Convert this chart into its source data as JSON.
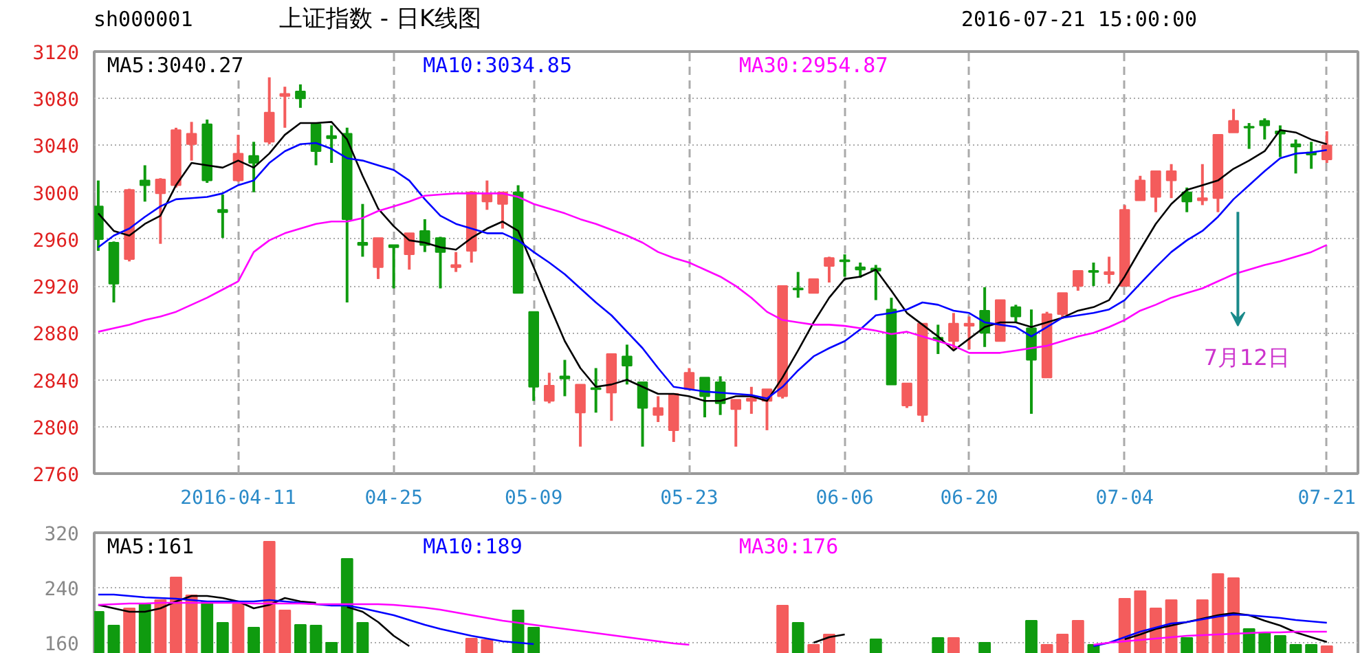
{
  "chart_data": [
    {
      "type": "candlestick",
      "title": "上证指数 - 日K线图",
      "annotations": [
        "sh000001",
        "2016-07-21 15:00:00",
        "7月12日"
      ],
      "categories": [
        null,
        null,
        null,
        null,
        null,
        null,
        null,
        null,
        null,
        "2016-04-11",
        null,
        null,
        null,
        null,
        null,
        null,
        null,
        null,
        null,
        "04-25",
        null,
        null,
        null,
        null,
        null,
        null,
        null,
        null,
        "05-09",
        null,
        null,
        null,
        null,
        null,
        null,
        null,
        null,
        null,
        "05-23",
        null,
        null,
        null,
        null,
        null,
        null,
        null,
        null,
        null,
        "06-06",
        null,
        null,
        null,
        null,
        null,
        null,
        null,
        "06-20",
        null,
        null,
        null,
        null,
        null,
        null,
        null,
        null,
        null,
        "07-04",
        null,
        null,
        null,
        null,
        null,
        null,
        null,
        null,
        null,
        null,
        null,
        null,
        "07-21"
      ],
      "ohlc": [
        [
          2988,
          3010,
          2950,
          2960
        ],
        [
          2957,
          2958,
          2906,
          2922
        ],
        [
          2943,
          3003,
          2941,
          3002
        ],
        [
          3010,
          3023,
          2992,
          3006
        ],
        [
          2999,
          3012,
          2956,
          3011
        ],
        [
          3006,
          3055,
          3004,
          3053
        ],
        [
          3041,
          3060,
          3027,
          3050
        ],
        [
          3058,
          3062,
          3008,
          3010
        ],
        [
          2985,
          2998,
          2961,
          2983
        ],
        [
          3010,
          3049,
          3009,
          3033
        ],
        [
          3031,
          3043,
          3000,
          3025
        ],
        [
          3043,
          3098,
          3041,
          3068
        ],
        [
          3082,
          3090,
          3055,
          3084
        ],
        [
          3086,
          3092,
          3072,
          3080
        ],
        [
          3058,
          3058,
          3023,
          3035
        ],
        [
          3048,
          3057,
          3025,
          3046
        ],
        [
          3050,
          3055,
          2906,
          2977
        ],
        [
          2957,
          2990,
          2945,
          2955
        ],
        [
          2936,
          2961,
          2926,
          2961
        ],
        [
          2955,
          2955,
          2918,
          2953
        ],
        [
          2947,
          2965,
          2934,
          2965
        ],
        [
          2967,
          2977,
          2949,
          2955
        ],
        [
          2961,
          2962,
          2918,
          2949
        ],
        [
          2936,
          2949,
          2932,
          2938
        ],
        [
          2950,
          3001,
          2940,
          3000
        ],
        [
          2992,
          3010,
          2985,
          2999
        ],
        [
          2990,
          3000,
          2969,
          3000
        ],
        [
          3000,
          3006,
          2914,
          2914
        ],
        [
          2898,
          2898,
          2822,
          2834
        ],
        [
          2822,
          2846,
          2820,
          2835
        ],
        [
          2843,
          2857,
          2826,
          2841
        ],
        [
          2812,
          2836,
          2783,
          2836
        ],
        [
          2833,
          2850,
          2812,
          2832
        ],
        [
          2829,
          2862,
          2805,
          2862
        ],
        [
          2860,
          2870,
          2836,
          2852
        ],
        [
          2838,
          2838,
          2783,
          2816
        ],
        [
          2810,
          2826,
          2804,
          2816
        ],
        [
          2797,
          2828,
          2787,
          2828
        ],
        [
          2832,
          2850,
          2832,
          2846
        ],
        [
          2842,
          2842,
          2808,
          2826
        ],
        [
          2838,
          2843,
          2810,
          2820
        ],
        [
          2815,
          2823,
          2783,
          2823
        ],
        [
          2822,
          2834,
          2811,
          2824
        ],
        [
          2822,
          2832,
          2797,
          2832
        ],
        [
          2826,
          2920,
          2824,
          2920
        ],
        [
          2918,
          2932,
          2910,
          2917
        ],
        [
          2914,
          2926,
          2914,
          2926
        ],
        [
          2937,
          2945,
          2923,
          2944
        ],
        [
          2942,
          2947,
          2928,
          2941
        ],
        [
          2936,
          2940,
          2927,
          2934
        ],
        [
          2935,
          2938,
          2908,
          2933
        ],
        [
          2900,
          2910,
          2836,
          2836
        ],
        [
          2818,
          2837,
          2816,
          2837
        ],
        [
          2810,
          2888,
          2804,
          2888
        ],
        [
          2876,
          2887,
          2862,
          2874
        ],
        [
          2873,
          2897,
          2865,
          2888
        ],
        [
          2886,
          2894,
          2866,
          2888
        ],
        [
          2899,
          2919,
          2868,
          2880
        ],
        [
          2873,
          2908,
          2873,
          2908
        ],
        [
          2902,
          2904,
          2889,
          2894
        ],
        [
          2884,
          2900,
          2811,
          2857
        ],
        [
          2842,
          2898,
          2842,
          2896
        ],
        [
          2896,
          2914,
          2892,
          2914
        ],
        [
          2920,
          2933,
          2916,
          2933
        ],
        [
          2933,
          2940,
          2920,
          2932
        ],
        [
          2930,
          2945,
          2922,
          2932
        ],
        [
          2920,
          2989,
          2920,
          2985
        ],
        [
          2993,
          3014,
          2993,
          3010
        ],
        [
          2996,
          3018,
          2983,
          3018
        ],
        [
          3010,
          3024,
          2995,
          3018
        ],
        [
          3000,
          3004,
          2983,
          2992
        ],
        [
          2993,
          3024,
          2989,
          2995
        ],
        [
          2995,
          3049,
          2983,
          3049
        ],
        [
          3051,
          3071,
          3051,
          3061
        ],
        [
          3056,
          3059,
          3037,
          3055
        ],
        [
          3061,
          3063,
          3045,
          3057
        ],
        [
          3052,
          3057,
          3030,
          3050
        ],
        [
          3041,
          3045,
          3016,
          3039
        ],
        [
          3034,
          3043,
          3020,
          3032
        ],
        [
          3028,
          3052,
          3025,
          3040
        ]
      ],
      "colors": [
        "#0f9b0f",
        "#0f9b0f",
        "#f45c5c",
        "#0f9b0f",
        "#f45c5c",
        "#f45c5c",
        "#f45c5c",
        "#0f9b0f",
        "#0f9b0f",
        "#f45c5c",
        "#0f9b0f",
        "#f45c5c",
        "#f45c5c",
        "#0f9b0f",
        "#0f9b0f",
        "#0f9b0f",
        "#0f9b0f",
        "#0f9b0f",
        "#f45c5c",
        "#0f9b0f",
        "#f45c5c",
        "#0f9b0f",
        "#0f9b0f",
        "#f45c5c",
        "#f45c5c",
        "#f45c5c",
        "#f45c5c",
        "#0f9b0f",
        "#0f9b0f",
        "#f45c5c",
        "#0f9b0f",
        "#f45c5c",
        "#0f9b0f",
        "#f45c5c",
        "#0f9b0f",
        "#0f9b0f",
        "#f45c5c",
        "#f45c5c",
        "#f45c5c",
        "#0f9b0f",
        "#0f9b0f",
        "#f45c5c",
        "#f45c5c",
        "#f45c5c",
        "#f45c5c",
        "#0f9b0f",
        "#f45c5c",
        "#f45c5c",
        "#0f9b0f",
        "#0f9b0f",
        "#0f9b0f",
        "#0f9b0f",
        "#f45c5c",
        "#f45c5c",
        "#0f9b0f",
        "#f45c5c",
        "#f45c5c",
        "#0f9b0f",
        "#f45c5c",
        "#0f9b0f",
        "#0f9b0f",
        "#f45c5c",
        "#f45c5c",
        "#f45c5c",
        "#0f9b0f",
        "#f45c5c",
        "#f45c5c",
        "#f45c5c",
        "#f45c5c",
        "#f45c5c",
        "#0f9b0f",
        "#f45c5c",
        "#f45c5c",
        "#f45c5c",
        "#0f9b0f",
        "#0f9b0f",
        "#0f9b0f",
        "#0f9b0f",
        "#0f9b0f",
        "#f45c5c"
      ],
      "series": [
        {
          "name": "MA5:3040.27",
          "type": "line",
          "color": "#000000",
          "values": [
            2982,
            2967,
            2963,
            2973,
            2980,
            3006,
            3025,
            3023,
            3021,
            3027,
            3021,
            3033,
            3049,
            3059,
            3059,
            3060,
            3045,
            3014,
            2986,
            2971,
            2959,
            2957,
            2953,
            2951,
            2961,
            2969,
            2975,
            2967,
            2936,
            2904,
            2873,
            2850,
            2834,
            2836,
            2840,
            2834,
            2828,
            2828,
            2826,
            2822,
            2822,
            2826,
            2826,
            2822,
            2842,
            2865,
            2889,
            2910,
            2926,
            2928,
            2934,
            2916,
            2897,
            2887,
            2877,
            2865,
            2875,
            2885,
            2889,
            2889,
            2885,
            2889,
            2893,
            2899,
            2902,
            2908,
            2928,
            2951,
            2973,
            2990,
            3002,
            3006,
            3010,
            3020,
            3027,
            3035,
            3053,
            3051,
            3045,
            3041
          ]
        },
        {
          "name": "MA10:3034.85",
          "type": "line",
          "color": "#0000ff",
          "values": [
            2953,
            2963,
            2969,
            2979,
            2988,
            2994,
            2995,
            2996,
            2999,
            3006,
            3010,
            3025,
            3035,
            3041,
            3042,
            3037,
            3029,
            3027,
            3023,
            3019,
            3010,
            2994,
            2980,
            2973,
            2969,
            2965,
            2965,
            2959,
            2949,
            2940,
            2930,
            2918,
            2906,
            2895,
            2881,
            2867,
            2850,
            2834,
            2832,
            2830,
            2829,
            2828,
            2827,
            2824,
            2834,
            2848,
            2860,
            2867,
            2873,
            2883,
            2895,
            2897,
            2900,
            2906,
            2904,
            2899,
            2897,
            2889,
            2887,
            2885,
            2877,
            2885,
            2893,
            2895,
            2897,
            2900,
            2908,
            2922,
            2936,
            2949,
            2959,
            2967,
            2979,
            2994,
            3006,
            3018,
            3029,
            3033,
            3034,
            3036
          ]
        },
        {
          "name": "MA30:2954.87",
          "type": "line",
          "color": "#ff00ff",
          "values": [
            2881,
            2884,
            2887,
            2891,
            2894,
            2898,
            2904,
            2910,
            2917,
            2924,
            2949,
            2959,
            2965,
            2969,
            2973,
            2975,
            2975,
            2978,
            2984,
            2988,
            2992,
            2997,
            2998,
            2999,
            2999,
            2999,
            2999,
            2996,
            2990,
            2986,
            2982,
            2977,
            2973,
            2968,
            2963,
            2957,
            2949,
            2944,
            2940,
            2934,
            2928,
            2920,
            2910,
            2898,
            2891,
            2889,
            2887,
            2887,
            2886,
            2884,
            2882,
            2879,
            2881,
            2877,
            2873,
            2869,
            2863,
            2863,
            2863,
            2865,
            2867,
            2869,
            2873,
            2877,
            2880,
            2885,
            2891,
            2899,
            2904,
            2910,
            2914,
            2918,
            2924,
            2930,
            2934,
            2938,
            2941,
            2945,
            2949,
            2955
          ]
        }
      ],
      "ylim": [
        2760,
        3120
      ],
      "yticks": [
        2760,
        2800,
        2840,
        2880,
        2920,
        2960,
        3000,
        3040,
        3080,
        3120
      ],
      "grid": true
    },
    {
      "type": "bar",
      "categories": [
        null,
        null,
        null,
        null,
        null,
        null,
        null,
        null,
        null,
        null,
        null,
        null,
        null,
        null,
        null,
        null,
        null,
        null,
        null,
        null,
        null,
        null,
        null,
        null,
        null,
        null,
        null,
        null,
        null,
        null,
        null,
        null,
        null,
        null,
        null,
        null,
        null,
        null,
        null,
        null,
        null,
        null,
        null,
        null,
        null,
        null,
        null,
        null,
        null,
        null,
        null,
        null,
        null,
        null,
        null,
        null,
        null,
        null,
        null,
        null,
        null,
        null,
        null,
        null,
        null,
        null,
        null,
        null,
        null,
        null,
        null,
        null,
        null,
        null,
        null,
        null,
        null,
        null,
        null,
        null
      ],
      "values": [
        205,
        185,
        210,
        216,
        222,
        255,
        229,
        220,
        189,
        216,
        182,
        307,
        207,
        186,
        185,
        160,
        282,
        189,
        null,
        null,
        null,
        null,
        null,
        null,
        166,
        164,
        null,
        207,
        182,
        null,
        null,
        null,
        null,
        null,
        null,
        null,
        null,
        null,
        null,
        null,
        null,
        null,
        null,
        null,
        214,
        189,
        157,
        172,
        null,
        null,
        165,
        null,
        null,
        null,
        167,
        167,
        null,
        160,
        null,
        null,
        192,
        157,
        172,
        192,
        157,
        null,
        224,
        235,
        210,
        222,
        167,
        222,
        260,
        254,
        180,
        174,
        170,
        157,
        157,
        155
      ],
      "colors": [
        "#0f9b0f",
        "#0f9b0f",
        "#f45c5c",
        "#0f9b0f",
        "#f45c5c",
        "#f45c5c",
        "#f45c5c",
        "#0f9b0f",
        "#0f9b0f",
        "#f45c5c",
        "#0f9b0f",
        "#f45c5c",
        "#f45c5c",
        "#0f9b0f",
        "#0f9b0f",
        "#0f9b0f",
        "#0f9b0f",
        "#0f9b0f",
        "#f45c5c",
        "#0f9b0f",
        "#f45c5c",
        "#0f9b0f",
        "#0f9b0f",
        "#f45c5c",
        "#f45c5c",
        "#f45c5c",
        "#f45c5c",
        "#0f9b0f",
        "#0f9b0f",
        "#f45c5c",
        "#0f9b0f",
        "#f45c5c",
        "#0f9b0f",
        "#f45c5c",
        "#0f9b0f",
        "#0f9b0f",
        "#f45c5c",
        "#f45c5c",
        "#f45c5c",
        "#0f9b0f",
        "#0f9b0f",
        "#f45c5c",
        "#f45c5c",
        "#f45c5c",
        "#f45c5c",
        "#0f9b0f",
        "#f45c5c",
        "#f45c5c",
        "#0f9b0f",
        "#0f9b0f",
        "#0f9b0f",
        "#0f9b0f",
        "#f45c5c",
        "#f45c5c",
        "#0f9b0f",
        "#f45c5c",
        "#f45c5c",
        "#0f9b0f",
        "#f45c5c",
        "#0f9b0f",
        "#0f9b0f",
        "#f45c5c",
        "#f45c5c",
        "#f45c5c",
        "#0f9b0f",
        "#f45c5c",
        "#f45c5c",
        "#f45c5c",
        "#f45c5c",
        "#f45c5c",
        "#0f9b0f",
        "#f45c5c",
        "#f45c5c",
        "#f45c5c",
        "#0f9b0f",
        "#0f9b0f",
        "#0f9b0f",
        "#0f9b0f",
        "#0f9b0f",
        "#f45c5c"
      ],
      "series": [
        {
          "name": "MA5:161",
          "type": "line",
          "color": "#000000",
          "values": [
            215,
            210,
            205,
            205,
            210,
            220,
            228,
            228,
            225,
            220,
            210,
            215,
            225,
            220,
            218,
            null,
            212,
            205,
            190,
            170,
            155,
            null,
            null,
            null,
            null,
            null,
            null,
            null,
            null,
            null,
            null,
            null,
            null,
            null,
            null,
            null,
            null,
            null,
            null,
            null,
            null,
            null,
            null,
            null,
            null,
            null,
            160,
            168,
            172,
            null,
            null,
            null,
            null,
            null,
            null,
            null,
            null,
            null,
            null,
            null,
            null,
            null,
            null,
            null,
            null,
            null,
            165,
            172,
            180,
            185,
            190,
            195,
            200,
            203,
            200,
            192,
            185,
            175,
            168,
            161
          ]
        },
        {
          "name": "MA10:189",
          "type": "line",
          "color": "#0000ff",
          "values": [
            230,
            230,
            228,
            226,
            225,
            224,
            222,
            220,
            220,
            220,
            220,
            222,
            220,
            218,
            216,
            214,
            214,
            210,
            205,
            200,
            193,
            186,
            180,
            175,
            170,
            166,
            162,
            160,
            158,
            null,
            null,
            null,
            null,
            null,
            null,
            null,
            null,
            null,
            null,
            null,
            null,
            null,
            null,
            null,
            null,
            null,
            null,
            null,
            null,
            null,
            null,
            null,
            null,
            null,
            null,
            null,
            null,
            null,
            null,
            null,
            null,
            null,
            null,
            null,
            155,
            160,
            168,
            176,
            182,
            188,
            190,
            194,
            198,
            201,
            200,
            198,
            196,
            193,
            191,
            189
          ]
        },
        {
          "name": "MA30:176",
          "type": "line",
          "color": "#ff00ff",
          "values": [
            215,
            216,
            217,
            217,
            218,
            218,
            218,
            218,
            218,
            218,
            217,
            217,
            217,
            217,
            216,
            216,
            216,
            216,
            216,
            215,
            213,
            211,
            208,
            204,
            200,
            196,
            192,
            189,
            186,
            183,
            180,
            177,
            174,
            171,
            168,
            165,
            162,
            159,
            157,
            null,
            null,
            null,
            null,
            null,
            null,
            null,
            null,
            null,
            null,
            null,
            null,
            null,
            null,
            null,
            null,
            null,
            null,
            null,
            null,
            null,
            null,
            null,
            null,
            null,
            157,
            160,
            162,
            164,
            166,
            168,
            170,
            171,
            172,
            173,
            174,
            175,
            175,
            176,
            176,
            176
          ]
        }
      ],
      "ylim": [
        136,
        320
      ],
      "yticks": [
        160,
        240,
        320
      ],
      "tick_labels": "y",
      "grid": "y"
    }
  ]
}
